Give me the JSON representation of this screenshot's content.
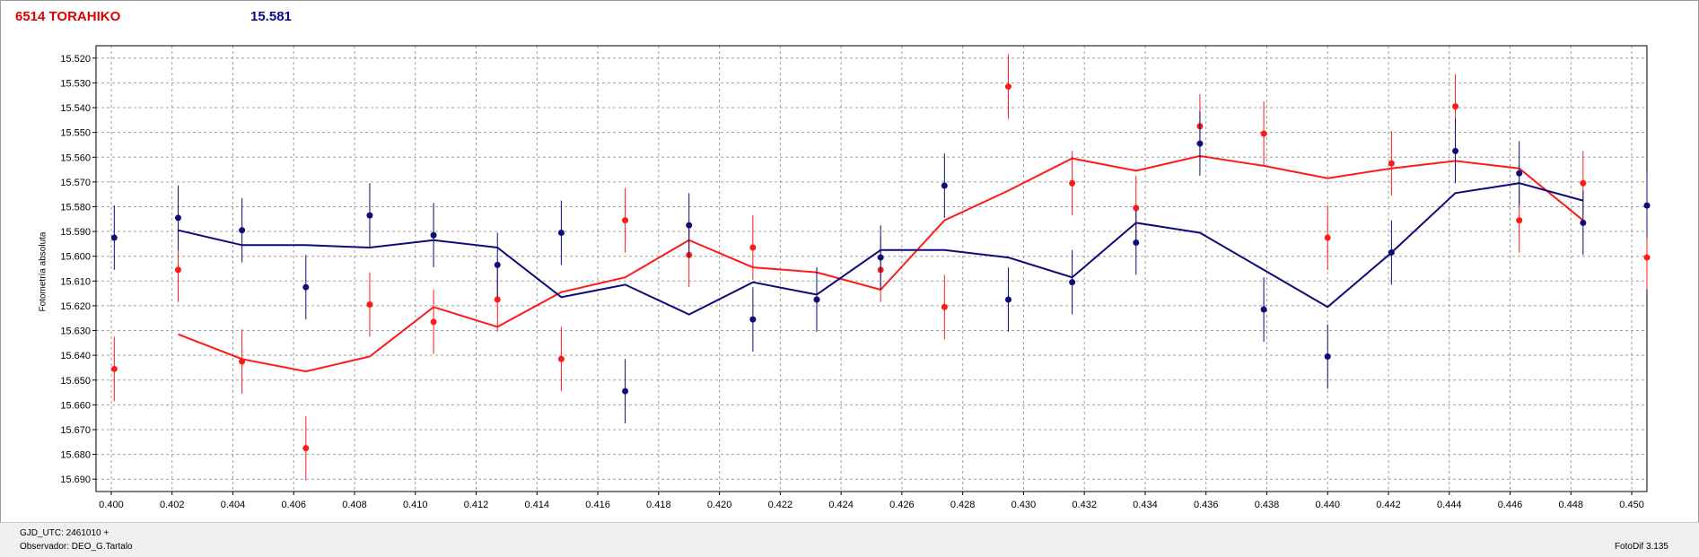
{
  "header": {
    "object_name": "6514 TORAHIKO",
    "magnitude": "15.581"
  },
  "footer": {
    "gjd": "GJD_UTC: 2461010 +",
    "observer": "Observador: DEO_G.Tartalo",
    "software": "FotoDif 3.135"
  },
  "colors": {
    "red": "#ff1a1a",
    "blue": "#0d0d7a"
  },
  "chart_data": {
    "type": "line",
    "title": "",
    "xlabel": "",
    "ylabel": "Fotometría absoluta",
    "xlim": [
      0.3995,
      0.4505
    ],
    "ylim": [
      15.695,
      15.515
    ],
    "y_inverted": true,
    "grid": true,
    "x_ticks": [
      "0.400",
      "0.402",
      "0.404",
      "0.406",
      "0.408",
      "0.410",
      "0.412",
      "0.414",
      "0.416",
      "0.418",
      "0.420",
      "0.422",
      "0.424",
      "0.426",
      "0.428",
      "0.430",
      "0.432",
      "0.434",
      "0.436",
      "0.438",
      "0.440",
      "0.442",
      "0.444",
      "0.446",
      "0.448",
      "0.450"
    ],
    "y_ticks": [
      "15.520",
      "15.530",
      "15.540",
      "15.550",
      "15.560",
      "15.570",
      "15.580",
      "15.590",
      "15.600",
      "15.610",
      "15.620",
      "15.630",
      "15.640",
      "15.650",
      "15.660",
      "15.670",
      "15.680",
      "15.690"
    ],
    "series": [
      {
        "color": "red",
        "points": [
          {
            "x": 0.4001,
            "y": 15.6455,
            "err": 0.013
          },
          {
            "x": 0.4022,
            "y": 15.6055,
            "err": 0.013
          },
          {
            "x": 0.4043,
            "y": 15.6425,
            "err": 0.013
          },
          {
            "x": 0.4064,
            "y": 15.6775,
            "err": 0.013
          },
          {
            "x": 0.4085,
            "y": 15.6195,
            "err": 0.013
          },
          {
            "x": 0.4106,
            "y": 15.6265,
            "err": 0.013
          },
          {
            "x": 0.4127,
            "y": 15.6175,
            "err": 0.013
          },
          {
            "x": 0.4148,
            "y": 15.6415,
            "err": 0.013
          },
          {
            "x": 0.4169,
            "y": 15.5855,
            "err": 0.013
          },
          {
            "x": 0.419,
            "y": 15.5995,
            "err": 0.013
          },
          {
            "x": 0.4211,
            "y": 15.5965,
            "err": 0.013
          },
          {
            "x": 0.4232,
            "y": 15.6175,
            "err": 0.013
          },
          {
            "x": 0.4253,
            "y": 15.6055,
            "err": 0.013
          },
          {
            "x": 0.4274,
            "y": 15.6205,
            "err": 0.013
          },
          {
            "x": 0.4295,
            "y": 15.5315,
            "err": 0.013
          },
          {
            "x": 0.4316,
            "y": 15.5705,
            "err": 0.013
          },
          {
            "x": 0.4337,
            "y": 15.5805,
            "err": 0.013
          },
          {
            "x": 0.4358,
            "y": 15.5475,
            "err": 0.013
          },
          {
            "x": 0.4379,
            "y": 15.5505,
            "err": 0.013
          },
          {
            "x": 0.44,
            "y": 15.5925,
            "err": 0.013
          },
          {
            "x": 0.4421,
            "y": 15.5625,
            "err": 0.013
          },
          {
            "x": 0.4442,
            "y": 15.5395,
            "err": 0.013
          },
          {
            "x": 0.4463,
            "y": 15.5855,
            "err": 0.013
          },
          {
            "x": 0.4484,
            "y": 15.5705,
            "err": 0.013
          },
          {
            "x": 0.4505,
            "y": 15.6005,
            "err": 0.013
          }
        ],
        "line": [
          {
            "x": 0.4022,
            "y": 15.6315
          },
          {
            "x": 0.4043,
            "y": 15.6415
          },
          {
            "x": 0.4064,
            "y": 15.6465
          },
          {
            "x": 0.4085,
            "y": 15.6405
          },
          {
            "x": 0.4106,
            "y": 15.6205
          },
          {
            "x": 0.4127,
            "y": 15.6285
          },
          {
            "x": 0.4148,
            "y": 15.6145
          },
          {
            "x": 0.4169,
            "y": 15.6085
          },
          {
            "x": 0.419,
            "y": 15.5935
          },
          {
            "x": 0.4211,
            "y": 15.6045
          },
          {
            "x": 0.4232,
            "y": 15.6065
          },
          {
            "x": 0.4253,
            "y": 15.6135
          },
          {
            "x": 0.4274,
            "y": 15.5855
          },
          {
            "x": 0.4295,
            "y": 15.5735
          },
          {
            "x": 0.4316,
            "y": 15.5605
          },
          {
            "x": 0.4337,
            "y": 15.5655
          },
          {
            "x": 0.4358,
            "y": 15.5595
          },
          {
            "x": 0.4379,
            "y": 15.5635
          },
          {
            "x": 0.44,
            "y": 15.5685
          },
          {
            "x": 0.4421,
            "y": 15.5645
          },
          {
            "x": 0.4442,
            "y": 15.5615
          },
          {
            "x": 0.4463,
            "y": 15.5645
          },
          {
            "x": 0.4484,
            "y": 15.5855
          }
        ]
      },
      {
        "color": "blue",
        "points": [
          {
            "x": 0.4001,
            "y": 15.5925,
            "err": 0.013
          },
          {
            "x": 0.4022,
            "y": 15.5845,
            "err": 0.013
          },
          {
            "x": 0.4043,
            "y": 15.5895,
            "err": 0.013
          },
          {
            "x": 0.4064,
            "y": 15.6125,
            "err": 0.013
          },
          {
            "x": 0.4085,
            "y": 15.5835,
            "err": 0.013
          },
          {
            "x": 0.4106,
            "y": 15.5915,
            "err": 0.013
          },
          {
            "x": 0.4127,
            "y": 15.6035,
            "err": 0.013
          },
          {
            "x": 0.4148,
            "y": 15.5905,
            "err": 0.013
          },
          {
            "x": 0.4169,
            "y": 15.6545,
            "err": 0.013
          },
          {
            "x": 0.419,
            "y": 15.5875,
            "err": 0.013
          },
          {
            "x": 0.4211,
            "y": 15.6255,
            "err": 0.013
          },
          {
            "x": 0.4232,
            "y": 15.6175,
            "err": 0.013
          },
          {
            "x": 0.4253,
            "y": 15.6005,
            "err": 0.013
          },
          {
            "x": 0.4274,
            "y": 15.5715,
            "err": 0.013
          },
          {
            "x": 0.4295,
            "y": 15.6175,
            "err": 0.013
          },
          {
            "x": 0.4316,
            "y": 15.6105,
            "err": 0.013
          },
          {
            "x": 0.4337,
            "y": 15.5945,
            "err": 0.013
          },
          {
            "x": 0.4358,
            "y": 15.5545,
            "err": 0.013
          },
          {
            "x": 0.4379,
            "y": 15.6215,
            "err": 0.013
          },
          {
            "x": 0.44,
            "y": 15.6405,
            "err": 0.013
          },
          {
            "x": 0.4421,
            "y": 15.5985,
            "err": 0.013
          },
          {
            "x": 0.4442,
            "y": 15.5575,
            "err": 0.013
          },
          {
            "x": 0.4463,
            "y": 15.5665,
            "err": 0.013
          },
          {
            "x": 0.4484,
            "y": 15.5865,
            "err": 0.013
          },
          {
            "x": 0.4505,
            "y": 15.5795,
            "err": 0.013
          }
        ],
        "line": [
          {
            "x": 0.4022,
            "y": 15.5895
          },
          {
            "x": 0.4043,
            "y": 15.5955
          },
          {
            "x": 0.4064,
            "y": 15.5955
          },
          {
            "x": 0.4085,
            "y": 15.5965
          },
          {
            "x": 0.4106,
            "y": 15.5935
          },
          {
            "x": 0.4127,
            "y": 15.5965
          },
          {
            "x": 0.4148,
            "y": 15.6165
          },
          {
            "x": 0.4169,
            "y": 15.6115
          },
          {
            "x": 0.419,
            "y": 15.6235
          },
          {
            "x": 0.4211,
            "y": 15.6105
          },
          {
            "x": 0.4232,
            "y": 15.6155
          },
          {
            "x": 0.4253,
            "y": 15.5975
          },
          {
            "x": 0.4274,
            "y": 15.5975
          },
          {
            "x": 0.4295,
            "y": 15.6005
          },
          {
            "x": 0.4316,
            "y": 15.6085
          },
          {
            "x": 0.4337,
            "y": 15.5865
          },
          {
            "x": 0.4358,
            "y": 15.5905
          },
          {
            "x": 0.4379,
            "y": 15.6055
          },
          {
            "x": 0.44,
            "y": 15.6205
          },
          {
            "x": 0.4421,
            "y": 15.5985
          },
          {
            "x": 0.4442,
            "y": 15.5745
          },
          {
            "x": 0.4463,
            "y": 15.5705
          },
          {
            "x": 0.4484,
            "y": 15.5775
          }
        ]
      }
    ]
  }
}
